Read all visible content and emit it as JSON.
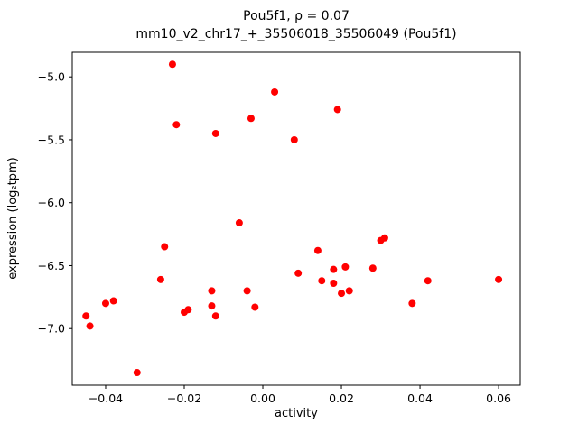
{
  "chart_data": {
    "type": "scatter",
    "title": "Pou5f1, ρ = 0.07",
    "subtitle": "mm10_v2_chr17_+_35506018_35506049 (Pou5f1)",
    "xlabel": "activity",
    "ylabel": "expression (log₂tpm)",
    "xlim": [
      -0.0485,
      0.0655
    ],
    "ylim": [
      -7.45,
      -4.805
    ],
    "xticks": {
      "values": [
        -0.04,
        -0.02,
        0.0,
        0.02,
        0.04,
        0.06
      ],
      "labels": [
        "−0.04",
        "−0.02",
        "0.00",
        "0.02",
        "0.04",
        "0.06"
      ]
    },
    "yticks": {
      "values": [
        -5.0,
        -5.5,
        -6.0,
        -6.5,
        -7.0
      ],
      "labels": [
        "−5.0",
        "−5.5",
        "−6.0",
        "−6.5",
        "−7.0"
      ]
    },
    "legend": null,
    "grid": false,
    "marker_color": "#ff0000",
    "marker_radius": 4,
    "points": [
      [
        -0.023,
        -4.9
      ],
      [
        0.003,
        -5.12
      ],
      [
        0.019,
        -5.26
      ],
      [
        -0.022,
        -5.38
      ],
      [
        -0.003,
        -5.33
      ],
      [
        -0.012,
        -5.45
      ],
      [
        0.008,
        -5.5
      ],
      [
        -0.006,
        -6.16
      ],
      [
        -0.025,
        -6.35
      ],
      [
        0.014,
        -6.38
      ],
      [
        0.03,
        -6.3
      ],
      [
        0.031,
        -6.28
      ],
      [
        -0.026,
        -6.61
      ],
      [
        0.009,
        -6.56
      ],
      [
        0.018,
        -6.53
      ],
      [
        0.021,
        -6.51
      ],
      [
        0.028,
        -6.52
      ],
      [
        0.015,
        -6.62
      ],
      [
        0.018,
        -6.64
      ],
      [
        0.042,
        -6.62
      ],
      [
        0.06,
        -6.61
      ],
      [
        -0.013,
        -6.7
      ],
      [
        -0.004,
        -6.7
      ],
      [
        0.02,
        -6.72
      ],
      [
        0.022,
        -6.7
      ],
      [
        -0.04,
        -6.8
      ],
      [
        -0.038,
        -6.78
      ],
      [
        -0.019,
        -6.85
      ],
      [
        -0.02,
        -6.87
      ],
      [
        -0.013,
        -6.82
      ],
      [
        -0.012,
        -6.9
      ],
      [
        0.038,
        -6.8
      ],
      [
        -0.002,
        -6.83
      ],
      [
        -0.045,
        -6.9
      ],
      [
        -0.044,
        -6.98
      ],
      [
        -0.032,
        -7.35
      ]
    ]
  }
}
